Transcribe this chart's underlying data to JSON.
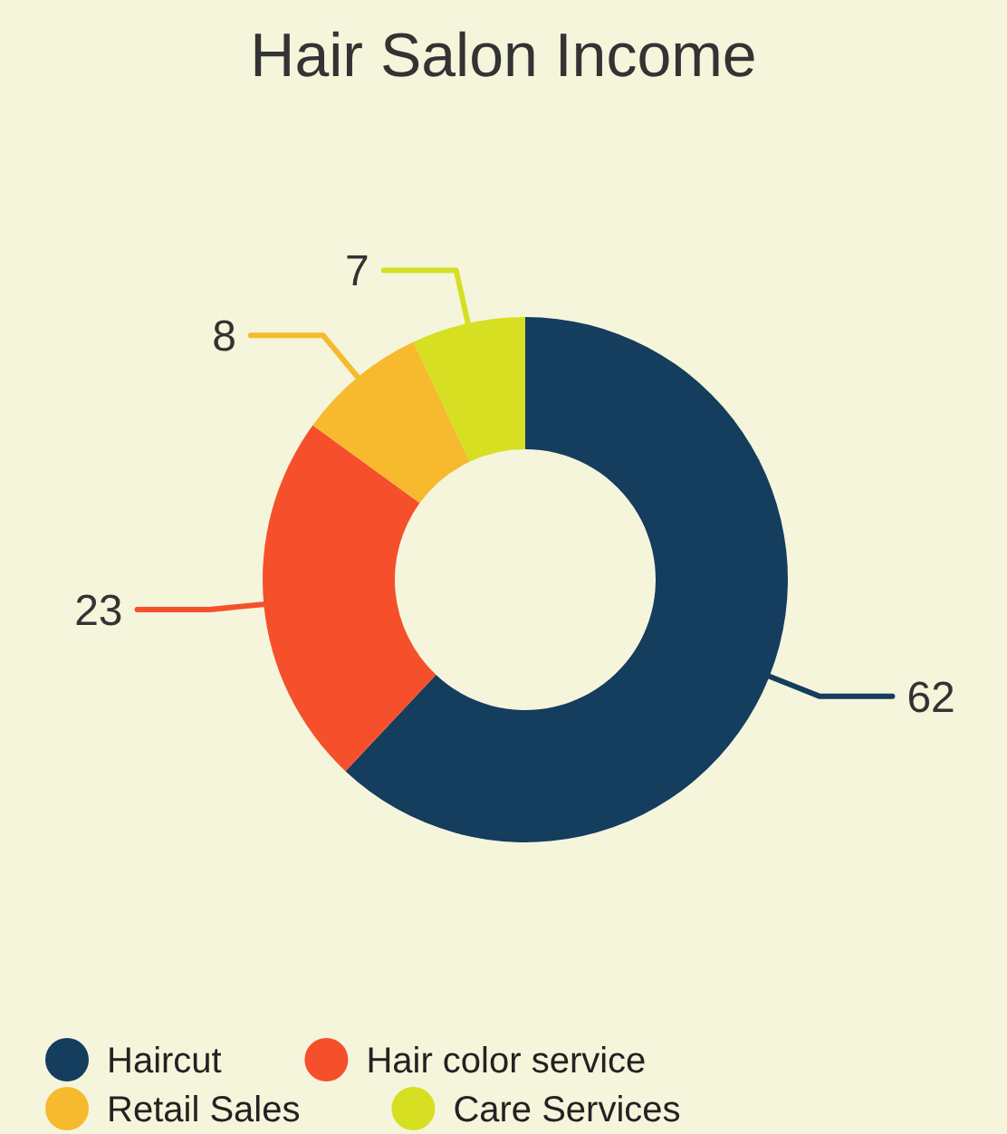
{
  "chart_data": {
    "type": "donut",
    "title": "Hair Salon Income",
    "categories": [
      "Haircut",
      "Hair color service",
      "Retail Sales",
      "Care Services"
    ],
    "values": [
      62,
      23,
      8,
      7
    ],
    "colors": [
      "#143d5e",
      "#f5502b",
      "#f7b92e",
      "#d6df22"
    ],
    "data_labels": true,
    "legend": "bottom"
  }
}
